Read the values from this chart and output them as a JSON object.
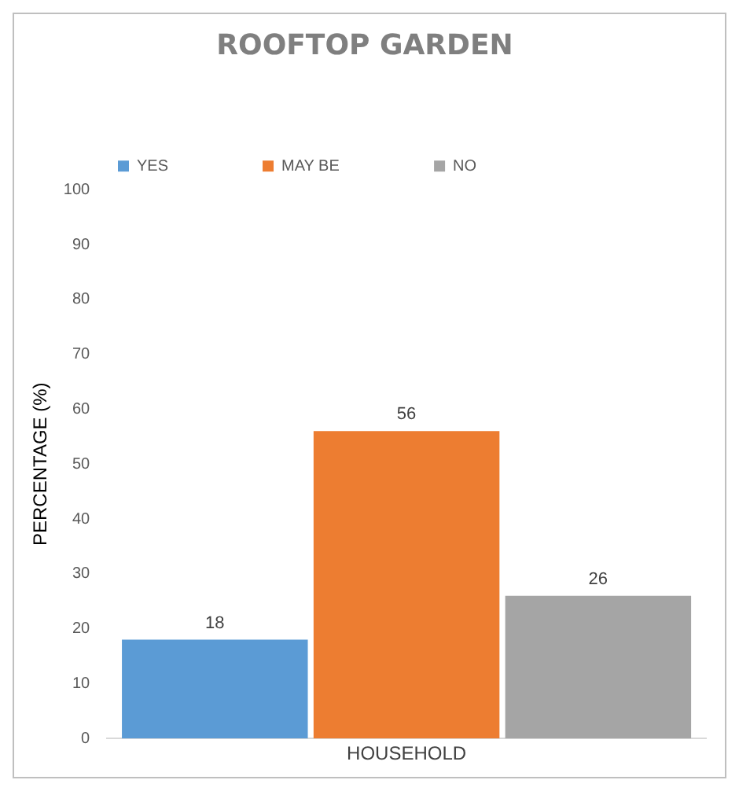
{
  "chart_data": {
    "type": "bar",
    "title": "ROOFTOP GARDEN",
    "ylabel": "PERCENTAGE (%)",
    "categories": [
      "HOUSEHOLD"
    ],
    "series": [
      {
        "name": "YES",
        "color": "#5b9bd5",
        "values": [
          18
        ]
      },
      {
        "name": "MAY BE",
        "color": "#ed7d31",
        "values": [
          56
        ]
      },
      {
        "name": "NO",
        "color": "#a5a5a5",
        "values": [
          26
        ]
      }
    ],
    "ylim": [
      0,
      100
    ],
    "yticks": [
      0,
      10,
      20,
      30,
      40,
      50,
      60,
      70,
      80,
      90,
      100
    ],
    "grid": false,
    "legend": "top",
    "data_labels": true
  }
}
